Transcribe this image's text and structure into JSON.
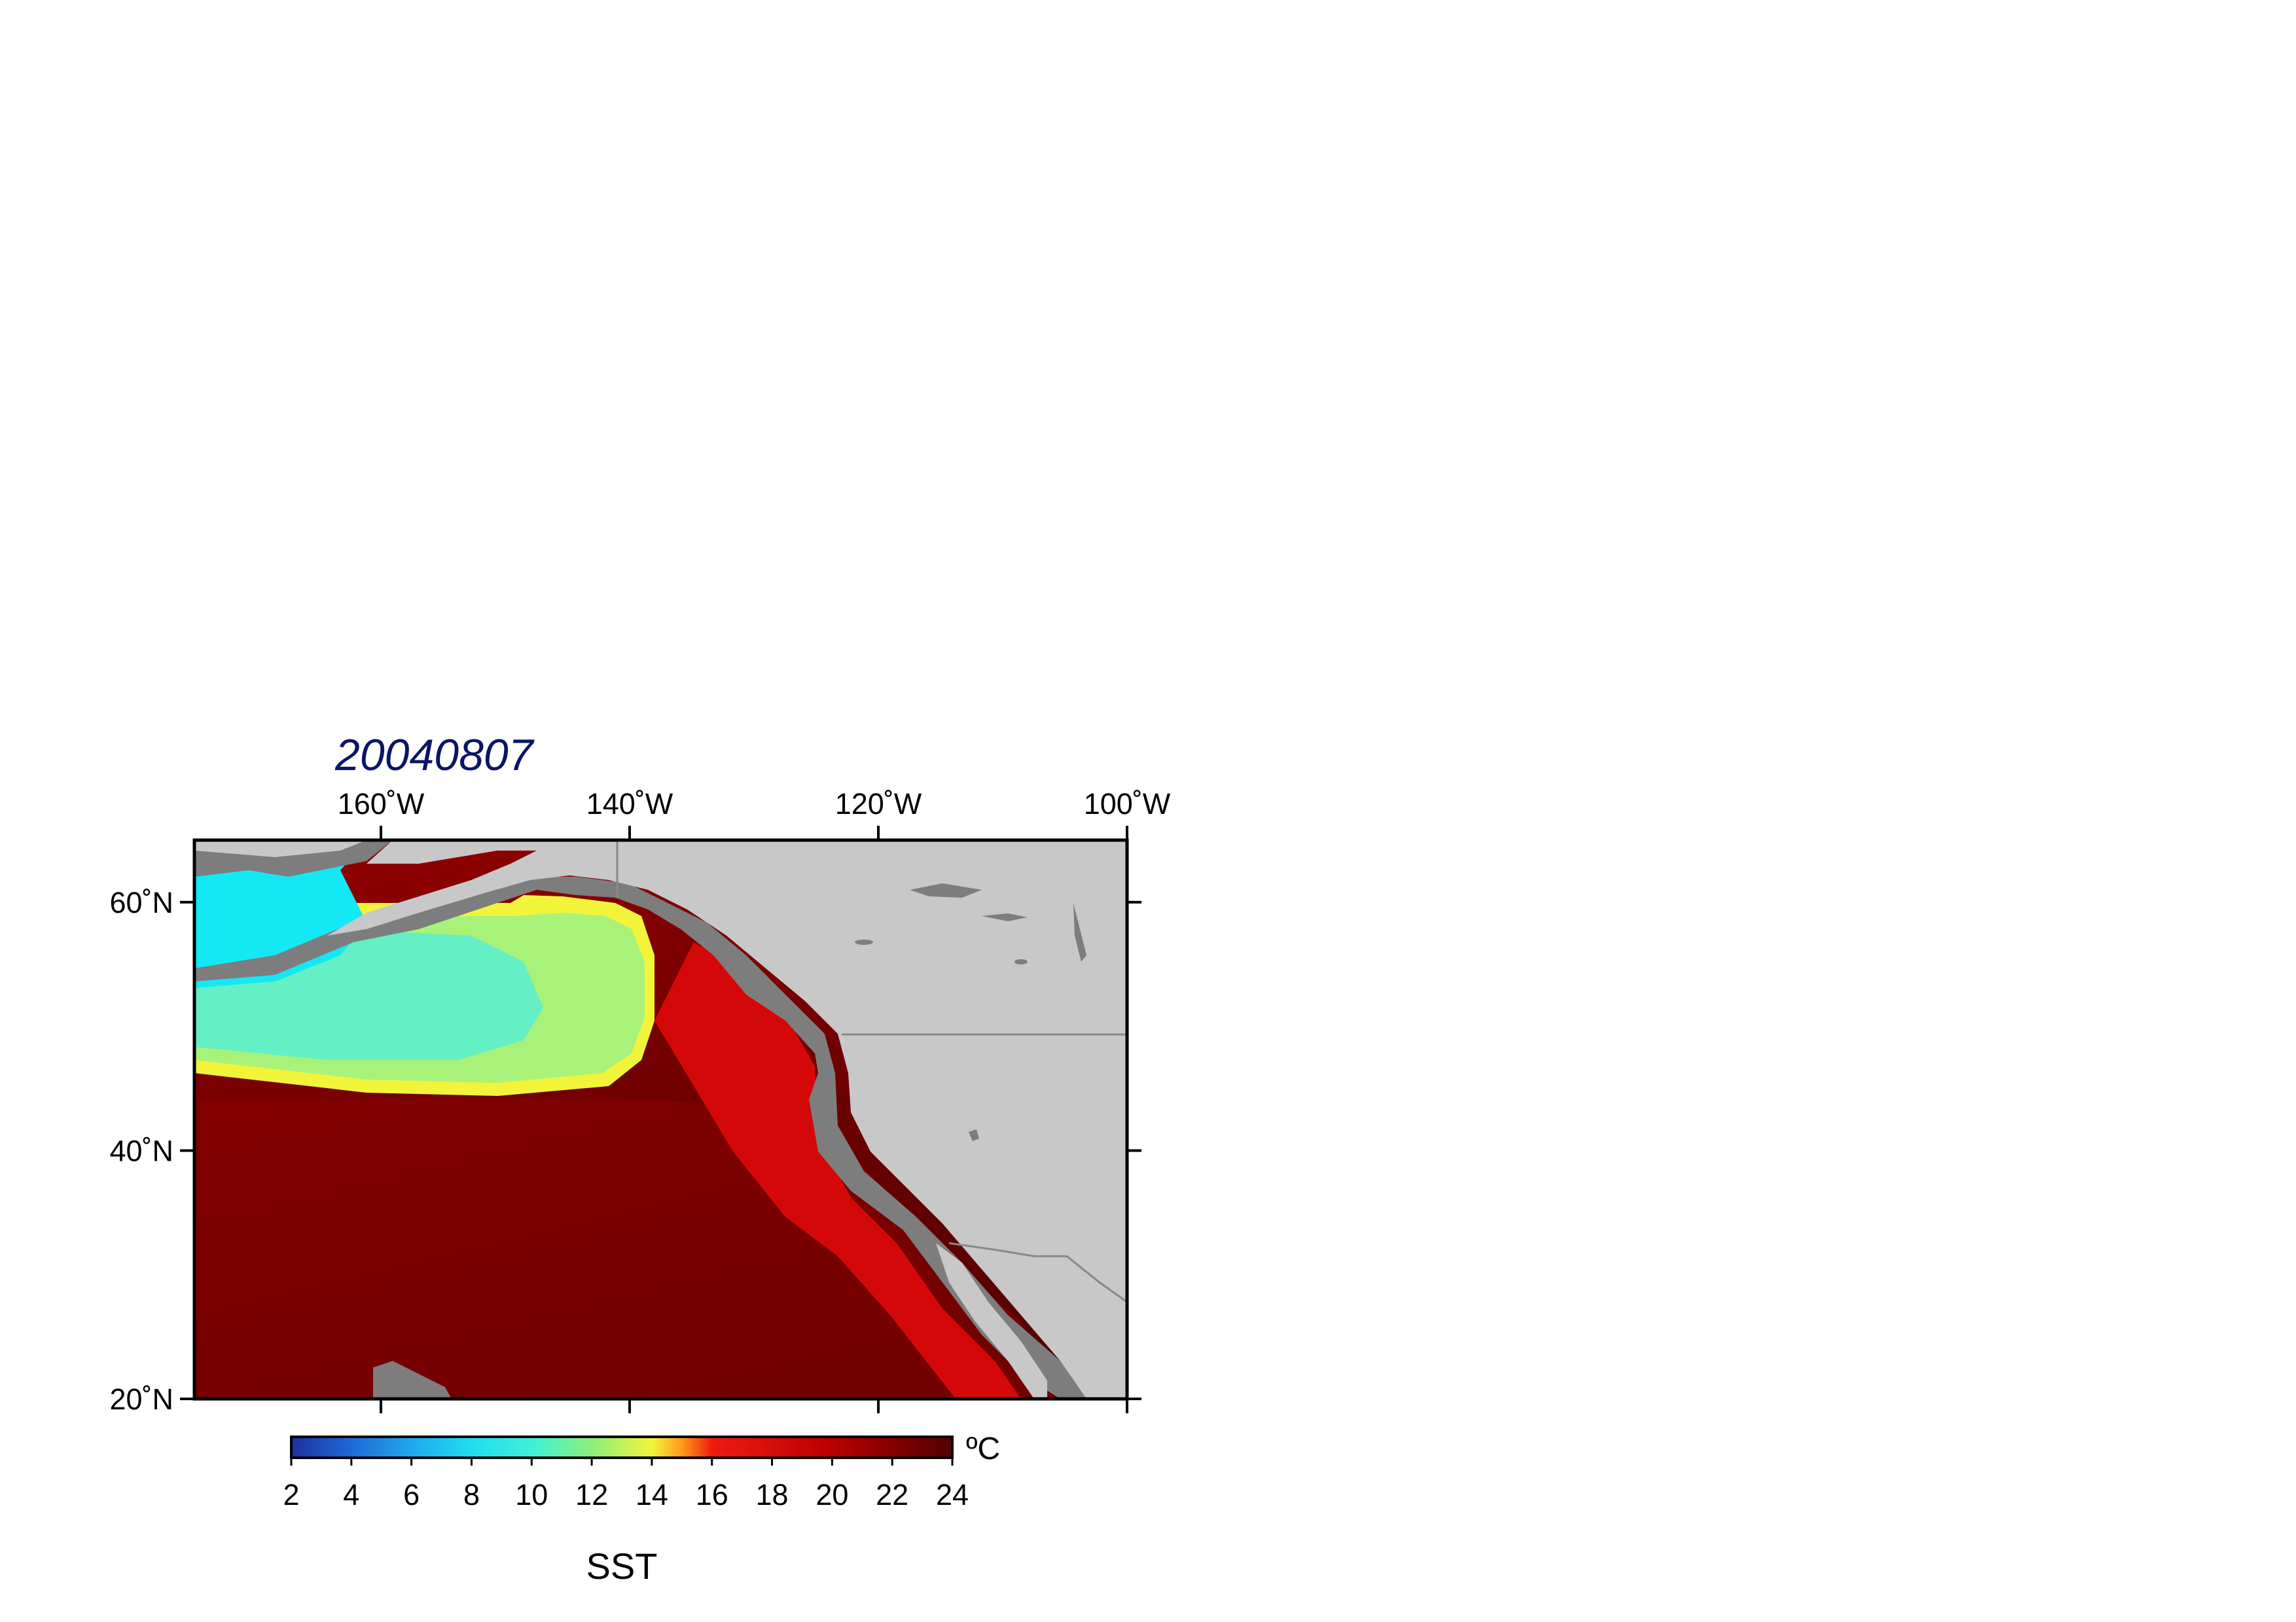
{
  "map": {
    "title": "20040807",
    "title_color": "#0b1466",
    "variable_label": "SST",
    "unit_label": "ºC",
    "lon_range_deg": [
      -175,
      -100
    ],
    "lat_range_deg": [
      20,
      65
    ],
    "lon_ticks": [
      {
        "value": -160,
        "label": "160˚W"
      },
      {
        "value": -140,
        "label": "140˚W"
      },
      {
        "value": -120,
        "label": "120˚W"
      },
      {
        "value": -100,
        "label": "100˚W"
      }
    ],
    "lat_ticks": [
      {
        "value": 60,
        "label": "60˚N"
      },
      {
        "value": 40,
        "label": "40˚N"
      },
      {
        "value": 20,
        "label": "20˚N"
      }
    ],
    "colors": {
      "land": "#c8c8c8",
      "shelf": "#7d7d7d",
      "border_lines": "#888888",
      "frame": "#000000"
    }
  },
  "colorbar": {
    "min": 2,
    "max": 24,
    "tick_values": [
      2,
      4,
      6,
      8,
      10,
      12,
      14,
      16,
      18,
      20,
      22,
      24
    ],
    "tick_labels": [
      "2",
      "4",
      "6",
      "8",
      "10",
      "12",
      "14",
      "16",
      "18",
      "20",
      "22",
      "24"
    ],
    "stops": [
      {
        "value": 2,
        "color": "#1e2fa0"
      },
      {
        "value": 4,
        "color": "#1f6ad6"
      },
      {
        "value": 6,
        "color": "#20a8ec"
      },
      {
        "value": 8,
        "color": "#21dcf0"
      },
      {
        "value": 10,
        "color": "#3ff0d8"
      },
      {
        "value": 12,
        "color": "#8af07a"
      },
      {
        "value": 14,
        "color": "#f2f43a"
      },
      {
        "value": 15,
        "color": "#ff9a1a"
      },
      {
        "value": 16,
        "color": "#ee1c10"
      },
      {
        "value": 20,
        "color": "#b80000"
      },
      {
        "value": 24,
        "color": "#520000"
      }
    ]
  },
  "sst_zones": [
    {
      "name": "bering-cold",
      "sst": 8
    },
    {
      "name": "gulf-of-alaska",
      "sst": 10.5
    },
    {
      "name": "alaska-transition",
      "sst": 13.5
    },
    {
      "name": "front-band",
      "sst": 14.5
    },
    {
      "name": "california-current",
      "sst": 17.5
    },
    {
      "name": "subtropical-north",
      "sst": 20
    },
    {
      "name": "subtropical-core",
      "sst": 23.5
    }
  ]
}
